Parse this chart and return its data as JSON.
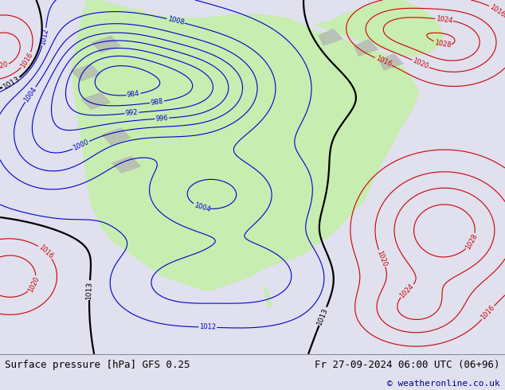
{
  "title_left": "Surface pressure [hPa] GFS 0.25",
  "title_right": "Fr 27-09-2024 06:00 UTC (06+96)",
  "copyright": "© weatheronline.co.uk",
  "ocean_color": "#dce8f0",
  "land_color": "#c8edb0",
  "gray_terrain_color": "#b0b0b0",
  "blue_contour_color": "#0000cc",
  "red_contour_color": "#cc0000",
  "black_contour_color": "#000000",
  "footer_bg": "#e0e0ee",
  "fig_width": 6.34,
  "fig_height": 4.9,
  "dpi": 100
}
